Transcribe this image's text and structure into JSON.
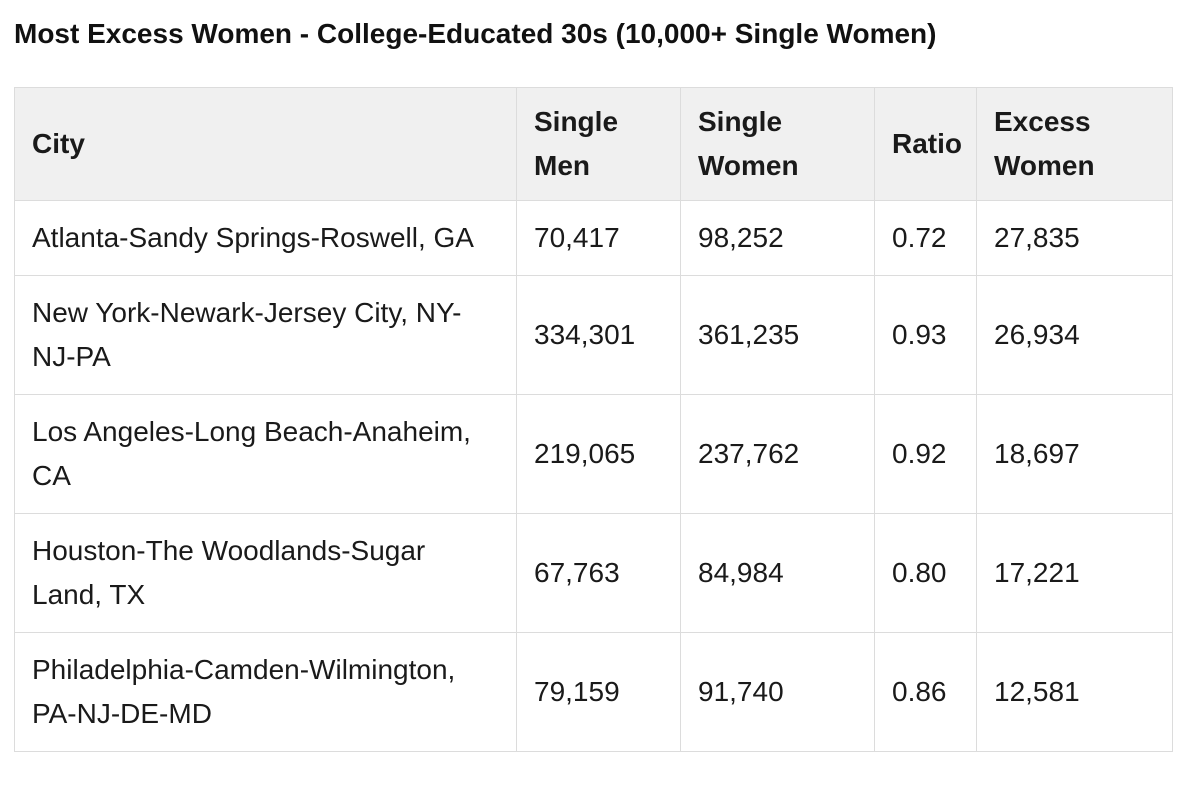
{
  "title": "Most Excess Women - College-Educated 30s (10,000+ Single Women)",
  "colors": {
    "header_background": "#f0f0f0",
    "border": "#dcdcdc",
    "text": "#1a1a1a",
    "page_background": "#ffffff"
  },
  "table": {
    "columns": {
      "city": "City",
      "single_men": "Single Men",
      "single_women": "Single Women",
      "ratio": "Ratio",
      "excess_women": "Excess Women"
    },
    "rows": [
      {
        "city": "Atlanta-Sandy Springs-Roswell, GA",
        "single_men": "70,417",
        "single_women": "98,252",
        "ratio": "0.72",
        "excess_women": "27,835"
      },
      {
        "city": "New York-Newark-Jersey City, NY-NJ-PA",
        "single_men": "334,301",
        "single_women": "361,235",
        "ratio": "0.93",
        "excess_women": "26,934"
      },
      {
        "city": "Los Angeles-Long Beach-Anaheim, CA",
        "single_men": "219,065",
        "single_women": "237,762",
        "ratio": "0.92",
        "excess_women": "18,697"
      },
      {
        "city": "Houston-The Woodlands-Sugar Land, TX",
        "single_men": "67,763",
        "single_women": "84,984",
        "ratio": "0.80",
        "excess_women": "17,221"
      },
      {
        "city": "Philadelphia-Camden-Wilmington, PA-NJ-DE-MD",
        "single_men": "79,159",
        "single_women": "91,740",
        "ratio": "0.86",
        "excess_women": "12,581"
      }
    ]
  },
  "chart_data": {
    "type": "table",
    "title": "Most Excess Women - College-Educated 30s (10,000+ Single Women)",
    "columns": [
      "City",
      "Single Men",
      "Single Women",
      "Ratio",
      "Excess Women"
    ],
    "rows": [
      [
        "Atlanta-Sandy Springs-Roswell, GA",
        70417,
        98252,
        0.72,
        27835
      ],
      [
        "New York-Newark-Jersey City, NY-NJ-PA",
        334301,
        361235,
        0.93,
        26934
      ],
      [
        "Los Angeles-Long Beach-Anaheim, CA",
        219065,
        237762,
        0.92,
        18697
      ],
      [
        "Houston-The Woodlands-Sugar Land, TX",
        67763,
        84984,
        0.8,
        17221
      ],
      [
        "Philadelphia-Camden-Wilmington, PA-NJ-DE-MD",
        79159,
        91740,
        0.86,
        12581
      ]
    ]
  }
}
